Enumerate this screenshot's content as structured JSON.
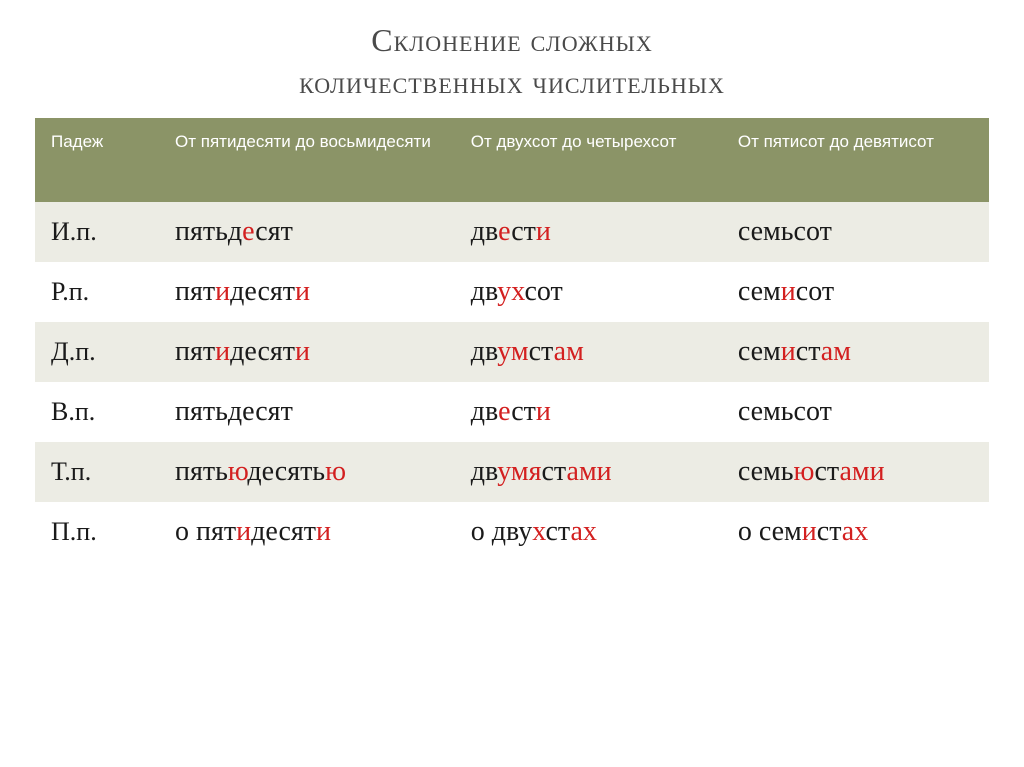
{
  "title_line1": "Склонение сложных",
  "title_line2": "количественных числительных",
  "headers": {
    "col1": "Падеж",
    "col2": "От пятидесяти до восьмидесяти",
    "col3": "От двухсот до четырехсот",
    "col4": "От пятисот до девятисот"
  },
  "rows": [
    {
      "case": "И.п.",
      "c2": "пятьд<hl>е</hl>сят",
      "c3": "дв<hl>е</hl>ст<hl>и</hl>",
      "c4": "семьсот"
    },
    {
      "case": "Р.п.",
      "c2": "пят<hl>и</hl>десят<hl>и</hl>",
      "c3": "дв<hl>ух</hl>сот",
      "c4": "сем<hl>и</hl>сот"
    },
    {
      "case": "Д.п.",
      "c2": "пят<hl>и</hl>десят<hl>и</hl>",
      "c3": "дв<hl>ум</hl>ст<hl>ам</hl>",
      "c4": "сем<hl>и</hl>ст<hl>ам</hl>"
    },
    {
      "case": "В.п.",
      "c2": "пятьдесят",
      "c3": "дв<hl>е</hl>ст<hl>и</hl>",
      "c4": "семьсот"
    },
    {
      "case": "Т.п.",
      "c2": "пять<hl>ю</hl>десять<hl>ю</hl>",
      "c3": "дв<hl>умя</hl>ст<hl>ами</hl>",
      "c4": "семь<hl>ю</hl>ст<hl>ами</hl>"
    },
    {
      "case": "П.п.",
      "c2": "о пят<hl>и</hl>десят<hl>и</hl>",
      "c3": "о дву<hl>х</hl>ст<hl>ах</hl>",
      "c4": "о сем<hl>и</hl>ст<hl>ах</hl>"
    }
  ],
  "styling": {
    "header_bg": "#8b9467",
    "header_text": "#ffffff",
    "row_odd_bg": "#ecece4",
    "row_even_bg": "#ffffff",
    "highlight_color": "#d32020",
    "title_color": "#4a4a4a",
    "body_text_color": "#1a1a1a",
    "title_fontsize": 32,
    "header_fontsize": 17,
    "cell_fontsize": 28
  }
}
